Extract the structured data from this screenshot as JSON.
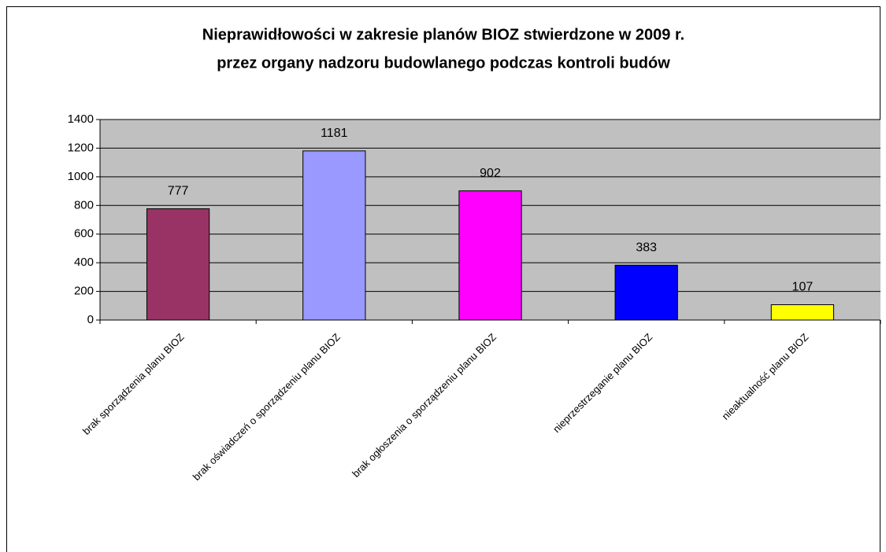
{
  "chart_data": {
    "type": "bar",
    "title": [
      "Nieprawidłowości w zakresie planów BIOZ stwierdzone w 2009 r.",
      "przez organy nadzoru budowlanego podczas kontroli budów"
    ],
    "categories": [
      "brak sporządzenia planu BIOZ",
      "brak oświadczeń o sporządzeniu planu BIOZ",
      "brak ogłoszenia o sporządzeniu planu BIOZ",
      "nieprzestrzeganie planu BIOZ",
      "nieaktualność planu BIOZ"
    ],
    "values": [
      777,
      1181,
      902,
      383,
      107
    ],
    "colors": [
      "#993366",
      "#9999ff",
      "#ff00ff",
      "#0000ff",
      "#ffff00"
    ],
    "ylim": [
      0,
      1400
    ],
    "yticks": [
      0,
      200,
      400,
      600,
      800,
      1000,
      1200,
      1400
    ],
    "grid": true
  }
}
